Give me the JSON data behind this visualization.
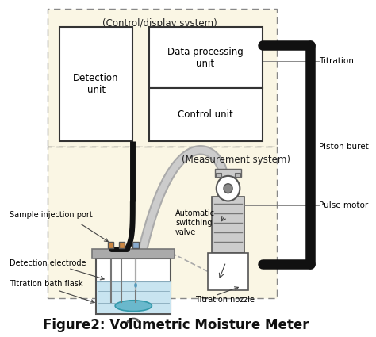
{
  "title": "Figure2: Volumetric Moisture Meter",
  "title_fontsize": 12,
  "background_color": "#ffffff",
  "bg_fill": "#faf6e4",
  "labels": {
    "control_display": "(Control/display system)",
    "measurement": "(Measurement system)",
    "detection_unit": "Detection\nunit",
    "data_processing": "Data processing\nunit",
    "control_unit": "Control unit",
    "sample_injection": "Sample injection port",
    "detection_electrode": "Detection electrode",
    "titration_bath": "Titration bath flask",
    "auto_valve": "Automatic\nswitching\nvalve",
    "titration_nozzle": "Titration nozzle",
    "titration": "Titration",
    "piston_buret": "Piston buret",
    "pulse_motor": "Pulse motor"
  },
  "colors": {
    "dashed_box": "#888888",
    "solid_thick": "#111111",
    "box_fill": "#ffffff",
    "flask_liquid": "#c8e4f0",
    "flask_oval": "#6ab8cc",
    "tube_gray": "#b8b8b8",
    "arrow_color": "#444444",
    "label_color": "#000000",
    "bg_fill": "#faf6e4",
    "lid_gray": "#aaaaaa",
    "buret_gray": "#cccccc",
    "nozzle_gray": "#dddddd"
  }
}
